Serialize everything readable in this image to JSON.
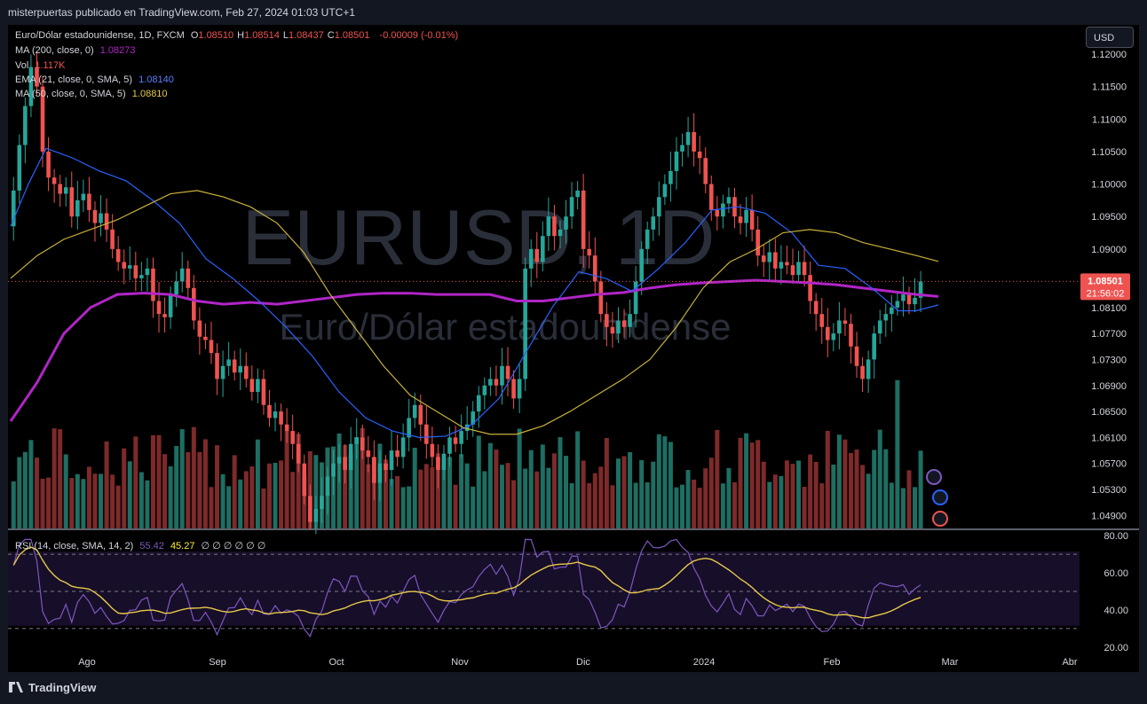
{
  "header": {
    "publisher_line": "misterpuertas publicado en TradingView.com, Feb 27, 2024 01:03 UTC+1"
  },
  "legend": {
    "symbol": "Euro/Dólar estadounidense, 1D, FXCM",
    "ohlc": [
      {
        "k": "O",
        "v": "1.08510"
      },
      {
        "k": "H",
        "v": "1.08514"
      },
      {
        "k": "L",
        "v": "1.08437"
      },
      {
        "k": "C",
        "v": "1.08501"
      }
    ],
    "change": "-0.00009 (-0.01%)",
    "ma200_label": "MA (200, close, 0)",
    "ma200_value": "1.08273",
    "vol_label": "Vol",
    "vol_value": "1.117K",
    "ema21_label": "EMA (21, close, 0, SMA, 5)",
    "ema21_value": "1.08140",
    "ma50_label": "MA (50, close, 0, SMA, 5)",
    "ma50_value": "1.08810",
    "rsi_label": "RSI (14, close, SMA, 14, 2)",
    "rsi_value": "55.42",
    "rsi_ma_value": "45.27",
    "rsi_extra": "∅ ∅ ∅ ∅ ∅ ∅"
  },
  "watermark": {
    "symbol": "EURUSD, 1D",
    "name": "Euro/Dólar estadounidense"
  },
  "currency_button": "USD",
  "price_tag": {
    "value": "1.08501",
    "countdown": "21:56:02"
  },
  "footer": {
    "brand": "TradingView"
  },
  "colors": {
    "up": "#26a69a",
    "down": "#ef5350",
    "ma200": "#b025c6",
    "ema21": "#2962ff",
    "ma50": "#c9b23a",
    "rsi": "#7e57c2",
    "rsi_ma": "#ffeb3b"
  },
  "chart_data": {
    "type": "candlestick",
    "price_axis_ticks": [
      "1.12000",
      "1.11500",
      "1.11000",
      "1.10500",
      "1.10000",
      "1.09500",
      "1.09000",
      "1.08100",
      "1.07700",
      "1.07300",
      "1.06900",
      "1.06500",
      "1.06100",
      "1.05700",
      "1.05300",
      "1.04900"
    ],
    "price_axis_range": [
      1.047,
      1.1245
    ],
    "time_axis_labels": [
      "Ago",
      "Sep",
      "Oct",
      "Nov",
      "Dic",
      "2024",
      "Feb",
      "Mar",
      "Abr"
    ],
    "rsi_axis_ticks": [
      "80.00",
      "60.00",
      "40.00",
      "20.00"
    ],
    "rsi_axis_range": [
      18,
      82
    ],
    "rsi_levels": [
      70,
      50,
      30
    ],
    "last_price": 1.08501,
    "series": [
      {
        "name": "MA (200, close, 0)",
        "points": [
          [
            0,
            1.0635
          ],
          [
            30,
            1.0695
          ],
          [
            60,
            1.077
          ],
          [
            90,
            1.081
          ],
          [
            120,
            1.083
          ],
          [
            150,
            1.0832
          ],
          [
            180,
            1.083
          ],
          [
            210,
            1.082
          ],
          [
            240,
            1.0815
          ],
          [
            270,
            1.0818
          ],
          [
            300,
            1.0815
          ],
          [
            330,
            1.082
          ],
          [
            360,
            1.0825
          ],
          [
            390,
            1.083
          ],
          [
            420,
            1.0832
          ],
          [
            450,
            1.0832
          ],
          [
            480,
            1.083
          ],
          [
            510,
            1.083
          ],
          [
            540,
            1.083
          ],
          [
            570,
            1.082
          ],
          [
            600,
            1.082
          ],
          [
            630,
            1.0825
          ],
          [
            660,
            1.083
          ],
          [
            690,
            1.0833
          ],
          [
            720,
            1.084
          ],
          [
            750,
            1.0845
          ],
          [
            780,
            1.0848
          ],
          [
            810,
            1.085
          ],
          [
            840,
            1.0852
          ],
          [
            870,
            1.085
          ],
          [
            900,
            1.0848
          ],
          [
            930,
            1.0845
          ],
          [
            960,
            1.084
          ],
          [
            990,
            1.0835
          ],
          [
            1020,
            1.083
          ],
          [
            1045,
            1.0827
          ]
        ]
      },
      {
        "name": "EMA (21, close, 0, SMA, 5)",
        "points": [
          [
            0,
            1.0935
          ],
          [
            20,
            1.1
          ],
          [
            40,
            1.1055
          ],
          [
            70,
            1.104
          ],
          [
            100,
            1.102
          ],
          [
            130,
            1.1005
          ],
          [
            160,
            1.0975
          ],
          [
            190,
            1.094
          ],
          [
            220,
            1.0885
          ],
          [
            250,
            1.0855
          ],
          [
            280,
            1.082
          ],
          [
            310,
            1.078
          ],
          [
            340,
            1.0735
          ],
          [
            370,
            1.068
          ],
          [
            400,
            1.064
          ],
          [
            430,
            1.062
          ],
          [
            460,
            1.061
          ],
          [
            490,
            1.0612
          ],
          [
            520,
            1.063
          ],
          [
            550,
            1.067
          ],
          [
            580,
            1.074
          ],
          [
            610,
            1.081
          ],
          [
            640,
            1.0865
          ],
          [
            670,
            1.0855
          ],
          [
            700,
            1.0835
          ],
          [
            730,
            1.087
          ],
          [
            760,
            1.091
          ],
          [
            790,
            1.096
          ],
          [
            820,
            1.0965
          ],
          [
            850,
            1.0955
          ],
          [
            880,
            1.0925
          ],
          [
            910,
            1.0875
          ],
          [
            940,
            1.087
          ],
          [
            970,
            1.084
          ],
          [
            1000,
            1.0805
          ],
          [
            1020,
            1.0805
          ],
          [
            1045,
            1.0814
          ]
        ]
      },
      {
        "name": "MA (50, close, 0, SMA, 5)",
        "points": [
          [
            0,
            1.0855
          ],
          [
            30,
            1.089
          ],
          [
            60,
            1.0915
          ],
          [
            90,
            1.093
          ],
          [
            120,
            1.0945
          ],
          [
            150,
            1.0965
          ],
          [
            180,
            1.0985
          ],
          [
            210,
            1.099
          ],
          [
            240,
            1.098
          ],
          [
            270,
            1.0965
          ],
          [
            300,
            1.094
          ],
          [
            330,
            1.0895
          ],
          [
            360,
            1.083
          ],
          [
            390,
            1.0775
          ],
          [
            420,
            1.072
          ],
          [
            450,
            1.0675
          ],
          [
            480,
            1.065
          ],
          [
            510,
            1.0625
          ],
          [
            540,
            1.0615
          ],
          [
            570,
            1.0615
          ],
          [
            600,
            1.0628
          ],
          [
            630,
            1.065
          ],
          [
            660,
            1.0675
          ],
          [
            690,
            1.07
          ],
          [
            720,
            1.073
          ],
          [
            750,
            1.078
          ],
          [
            780,
            1.084
          ],
          [
            810,
            1.088
          ],
          [
            840,
            1.09
          ],
          [
            870,
            1.0925
          ],
          [
            900,
            1.093
          ],
          [
            930,
            1.0925
          ],
          [
            960,
            1.091
          ],
          [
            990,
            1.09
          ],
          [
            1020,
            1.089
          ],
          [
            1045,
            1.0881
          ]
        ]
      }
    ],
    "candles_note": "Daily candles from late July 2023 to Feb 26, 2024, estimated from the picture.",
    "closes": [
      1.099,
      1.106,
      1.112,
      1.118,
      1.115,
      1.105,
      1.101,
      1.1,
      1.0985,
      1.0995,
      1.095,
      1.0975,
      1.0985,
      1.096,
      1.094,
      1.0955,
      1.093,
      1.09,
      1.088,
      1.087,
      1.0875,
      1.0855,
      1.086,
      1.087,
      1.082,
      1.08,
      1.0795,
      1.083,
      1.085,
      1.087,
      1.084,
      1.079,
      1.0765,
      1.076,
      1.074,
      1.07,
      1.072,
      1.073,
      1.071,
      1.072,
      1.07,
      1.068,
      1.07,
      1.066,
      1.064,
      1.065,
      1.063,
      1.062,
      1.06,
      1.057,
      1.052,
      1.048,
      1.05,
      1.052,
      1.055,
      1.057,
      1.058,
      1.056,
      1.06,
      1.061,
      1.059,
      1.058,
      1.054,
      1.057,
      1.056,
      1.059,
      1.058,
      1.061,
      1.064,
      1.066,
      1.063,
      1.06,
      1.058,
      1.056,
      1.0585,
      1.061,
      1.06,
      1.062,
      1.063,
      1.065,
      1.0675,
      1.069,
      1.07,
      1.069,
      1.072,
      1.07,
      1.067,
      1.07,
      1.087,
      1.09,
      1.088,
      1.092,
      1.095,
      1.092,
      1.093,
      1.095,
      1.098,
      1.099,
      1.09,
      1.089,
      1.085,
      1.08,
      1.078,
      1.077,
      1.079,
      1.078,
      1.08,
      1.085,
      1.09,
      1.093,
      1.095,
      1.098,
      1.1,
      1.102,
      1.105,
      1.106,
      1.108,
      1.105,
      1.104,
      1.1,
      1.096,
      1.095,
      1.097,
      1.098,
      1.095,
      1.094,
      1.096,
      1.093,
      1.089,
      1.088,
      1.0895,
      1.087,
      1.088,
      1.0875,
      1.086,
      1.088,
      1.086,
      1.082,
      1.08,
      1.078,
      1.076,
      1.077,
      1.079,
      1.0785,
      1.075,
      1.072,
      1.07,
      1.073,
      1.077,
      1.079,
      1.08,
      1.081,
      1.082,
      1.083,
      1.0815,
      1.0825,
      1.085
    ]
  }
}
